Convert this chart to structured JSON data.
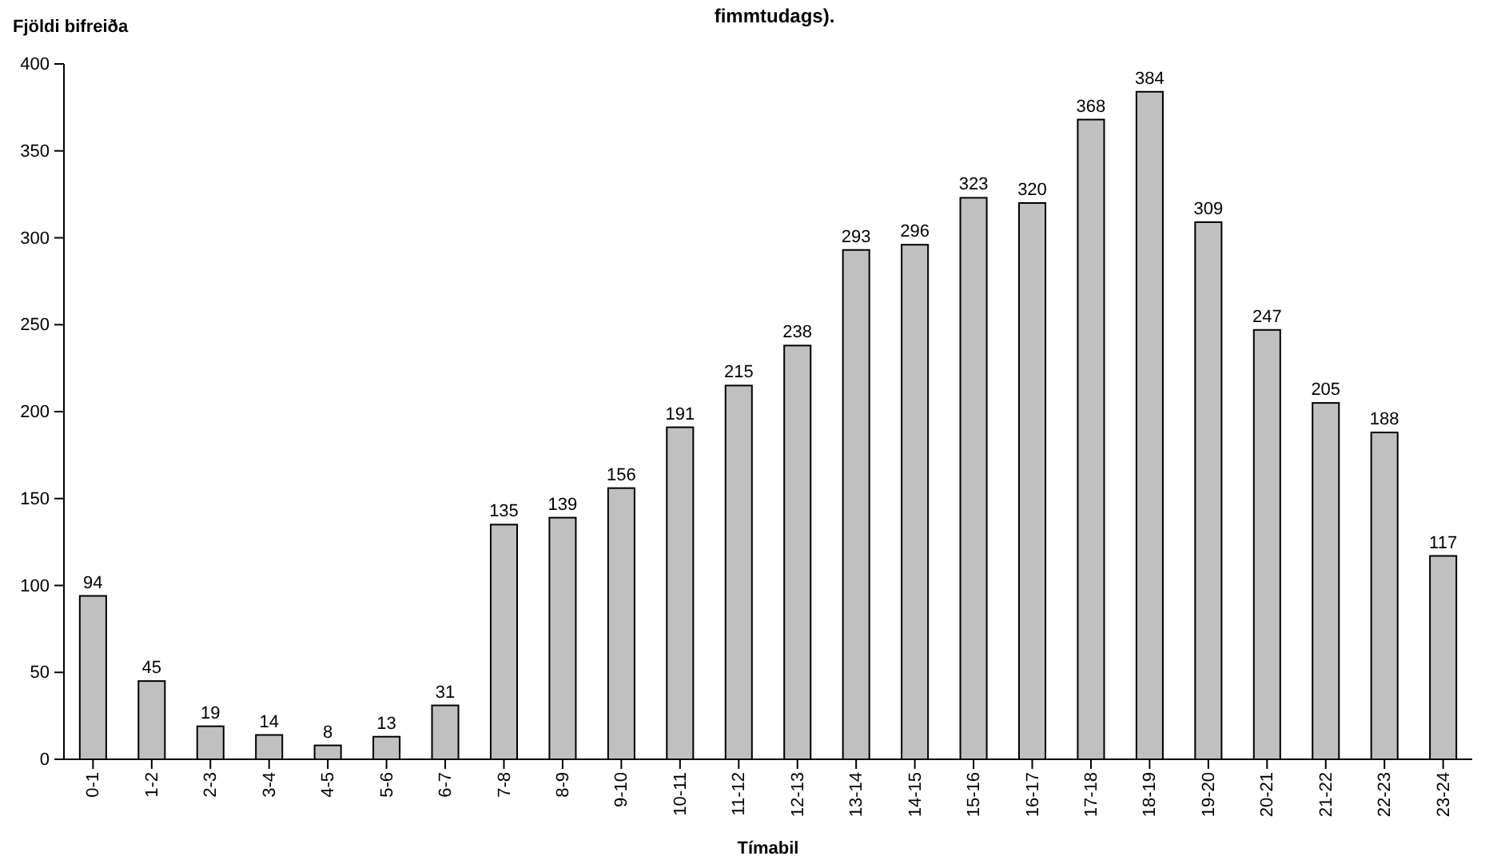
{
  "chart_data": {
    "type": "bar",
    "title": "fimmtudags).",
    "xlabel": "Tímabil",
    "ylabel": "Fjöldi bifreiða",
    "categories": [
      "0-1",
      "1-2",
      "2-3",
      "3-4",
      "4-5",
      "5-6",
      "6-7",
      "7-8",
      "8-9",
      "9-10",
      "10-11",
      "11-12",
      "12-13",
      "13-14",
      "14-15",
      "15-16",
      "16-17",
      "17-18",
      "18-19",
      "19-20",
      "20-21",
      "21-22",
      "22-23",
      "23-24"
    ],
    "values": [
      94,
      45,
      19,
      14,
      8,
      13,
      31,
      135,
      139,
      156,
      191,
      215,
      238,
      293,
      296,
      323,
      320,
      368,
      384,
      309,
      247,
      205,
      188,
      117
    ],
    "color": "#c0c0c0",
    "ylim": [
      0,
      400
    ],
    "yticks": [
      0,
      50,
      100,
      150,
      200,
      250,
      300,
      350,
      400
    ],
    "data_labels": true
  }
}
